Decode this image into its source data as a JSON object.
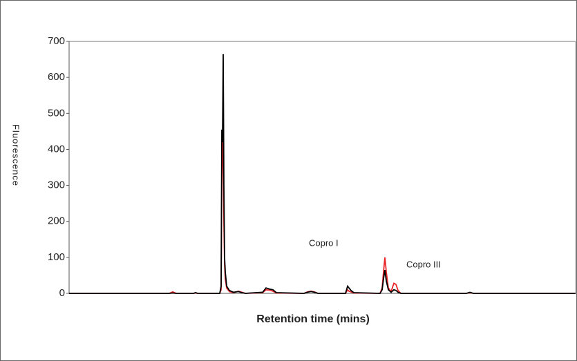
{
  "chart_data": {
    "type": "line",
    "x_label": "Retention time (mins)",
    "y_label": "Fluorescence",
    "annotations": [
      "Copro I",
      "Copro III"
    ],
    "x": [
      0,
      145,
      150,
      155,
      180,
      183,
      186,
      218,
      220,
      221,
      222,
      223,
      224,
      225,
      226,
      228,
      232,
      238,
      245,
      250,
      255,
      280,
      285,
      290,
      295,
      300,
      340,
      345,
      350,
      355,
      360,
      400,
      403,
      405,
      408,
      412,
      450,
      453,
      455,
      457,
      459,
      462,
      466,
      470,
      473,
      476,
      480,
      575,
      580,
      585,
      733
    ],
    "series": [
      {
        "color": "#e8262a",
        "values": [
          0,
          0,
          4,
          0,
          0,
          1,
          0,
          0,
          10,
          300,
          400,
          450,
          200,
          80,
          40,
          15,
          5,
          2,
          6,
          3,
          0,
          2,
          10,
          9,
          6,
          1,
          0,
          4,
          6,
          4,
          0,
          0,
          10,
          6,
          4,
          1,
          0,
          15,
          60,
          100,
          60,
          15,
          5,
          28,
          25,
          8,
          0,
          0,
          2,
          0,
          0
        ]
      },
      {
        "color": "#000000",
        "values": [
          0,
          0,
          1,
          0,
          0,
          2,
          0,
          0,
          20,
          455,
          420,
          665,
          300,
          100,
          60,
          20,
          8,
          3,
          5,
          2,
          0,
          3,
          15,
          12,
          10,
          2,
          0,
          3,
          5,
          3,
          0,
          0,
          20,
          15,
          8,
          2,
          0,
          10,
          40,
          65,
          35,
          10,
          3,
          10,
          8,
          3,
          0,
          0,
          3,
          0,
          0
        ]
      }
    ],
    "xlim": [
      0,
      733
    ],
    "ylim": [
      0,
      700
    ],
    "yticks": [
      0,
      100,
      200,
      300,
      400,
      500,
      600,
      700
    ]
  }
}
